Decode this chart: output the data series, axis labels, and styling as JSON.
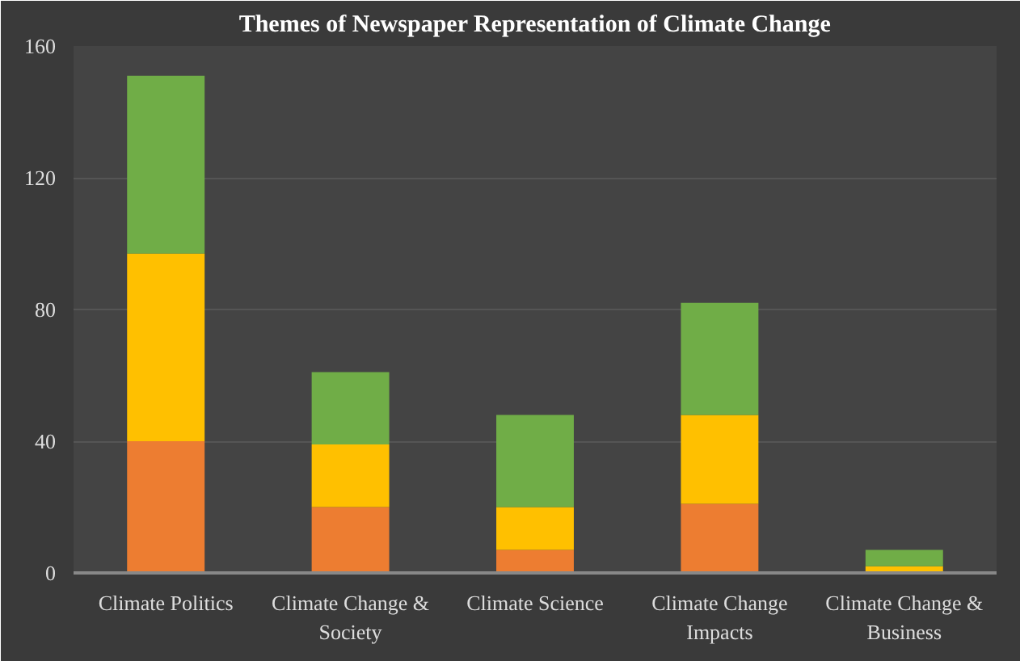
{
  "chart_data": {
    "type": "bar",
    "title": "Themes of Newspaper Representation of Climate Change",
    "categories": [
      "Climate Politics",
      "Climate Change & Society",
      "Climate Science",
      "Climate Change Impacts",
      "Climate Change & Business"
    ],
    "stacked": true,
    "series": [
      {
        "color": "#ed7d31",
        "values": [
          40,
          20,
          7,
          21,
          null
        ]
      },
      {
        "color": "#ffc000",
        "values": [
          57,
          19,
          13,
          27,
          2
        ]
      },
      {
        "color": "#70ad47",
        "values": [
          54,
          22,
          28,
          34,
          5
        ]
      }
    ],
    "ylim": [
      0,
      160
    ],
    "yticks": [
      0,
      40,
      80,
      120,
      160
    ],
    "grid": "y"
  }
}
